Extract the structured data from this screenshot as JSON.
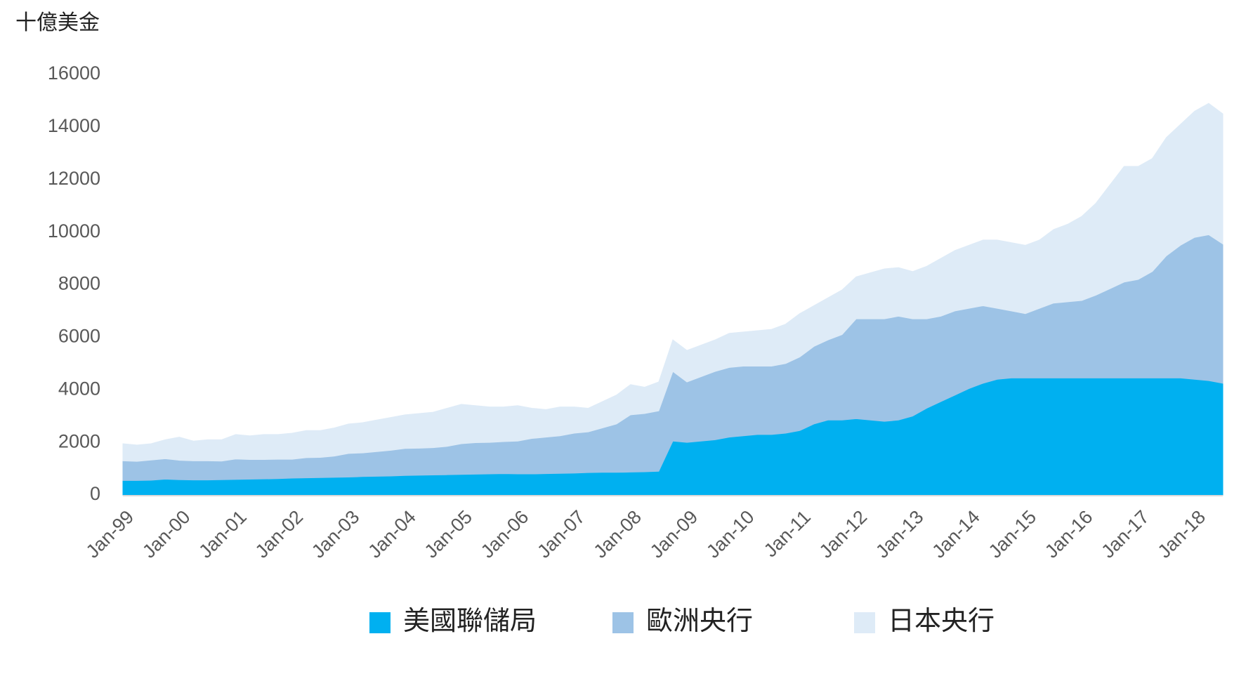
{
  "chart_data": {
    "type": "stacked_area",
    "y_label": "十億美金",
    "categories": [
      "Jan-99",
      null,
      null,
      null,
      "Jan-00",
      null,
      null,
      null,
      "Jan-01",
      null,
      null,
      null,
      "Jan-02",
      null,
      null,
      null,
      "Jan-03",
      null,
      null,
      null,
      "Jan-04",
      null,
      null,
      null,
      "Jan-05",
      null,
      null,
      null,
      "Jan-06",
      null,
      null,
      null,
      "Jan-07",
      null,
      null,
      null,
      "Jan-08",
      null,
      null,
      null,
      "Jan-09",
      null,
      null,
      null,
      "Jan-10",
      null,
      null,
      null,
      "Jan-11",
      null,
      null,
      null,
      "Jan-12",
      null,
      null,
      null,
      "Jan-13",
      null,
      null,
      null,
      "Jan-14",
      null,
      null,
      null,
      "Jan-15",
      null,
      null,
      null,
      "Jan-16",
      null,
      null,
      null,
      "Jan-17",
      null,
      null,
      null,
      "Jan-18",
      null,
      null
    ],
    "series": [
      {
        "name": "美國聯儲局",
        "color": "#00b0f0",
        "values": [
          550,
          550,
          560,
          600,
          580,
          570,
          570,
          580,
          590,
          600,
          610,
          620,
          640,
          650,
          660,
          670,
          680,
          700,
          710,
          720,
          740,
          750,
          760,
          770,
          780,
          790,
          800,
          810,
          800,
          800,
          810,
          820,
          830,
          850,
          860,
          860,
          870,
          880,
          900,
          2050,
          2000,
          2050,
          2100,
          2200,
          2250,
          2300,
          2300,
          2350,
          2450,
          2700,
          2850,
          2850,
          2900,
          2850,
          2800,
          2850,
          3000,
          3300,
          3550,
          3800,
          4050,
          4250,
          4400,
          4450,
          4450,
          4450,
          4450,
          4450,
          4450,
          4450,
          4450,
          4450,
          4450,
          4450,
          4450,
          4450,
          4400,
          4350,
          4250
        ]
      },
      {
        "name": "歐洲央行",
        "color": "#9dc3e6",
        "values": [
          750,
          730,
          770,
          780,
          740,
          730,
          730,
          710,
          780,
          750,
          740,
          740,
          720,
          770,
          770,
          810,
          900,
          900,
          940,
          980,
          1030,
          1030,
          1040,
          1080,
          1170,
          1200,
          1200,
          1220,
          1250,
          1350,
          1390,
          1430,
          1520,
          1550,
          1690,
          1840,
          2180,
          2220,
          2300,
          2650,
          2300,
          2450,
          2600,
          2650,
          2650,
          2600,
          2600,
          2650,
          2800,
          2950,
          3050,
          3250,
          3800,
          3850,
          3900,
          3950,
          3700,
          3400,
          3250,
          3200,
          3050,
          2950,
          2700,
          2550,
          2450,
          2650,
          2850,
          2900,
          2950,
          3150,
          3400,
          3650,
          3750,
          4050,
          4650,
          5050,
          5400,
          5550,
          5300
        ]
      },
      {
        "name": "日本央行",
        "color": "#deebf7",
        "values": [
          650,
          620,
          620,
          720,
          880,
          750,
          800,
          810,
          930,
          900,
          950,
          940,
          990,
          1030,
          1020,
          1070,
          1120,
          1150,
          1200,
          1250,
          1280,
          1320,
          1350,
          1450,
          1500,
          1410,
          1350,
          1320,
          1350,
          1150,
          1050,
          1100,
          1000,
          900,
          1000,
          1100,
          1150,
          1000,
          1100,
          1200,
          1200,
          1200,
          1200,
          1300,
          1300,
          1350,
          1400,
          1500,
          1650,
          1550,
          1600,
          1700,
          1600,
          1750,
          1900,
          1850,
          1800,
          2000,
          2200,
          2300,
          2400,
          2500,
          2600,
          2600,
          2600,
          2600,
          2800,
          2950,
          3200,
          3500,
          3950,
          4400,
          4300,
          4300,
          4500,
          4600,
          4800,
          5000,
          4950
        ]
      }
    ],
    "ylim": [
      0,
      16000
    ],
    "yticks": [
      0,
      2000,
      4000,
      6000,
      8000,
      10000,
      12000,
      14000,
      16000
    ],
    "grid": false,
    "legend": "bottom"
  }
}
